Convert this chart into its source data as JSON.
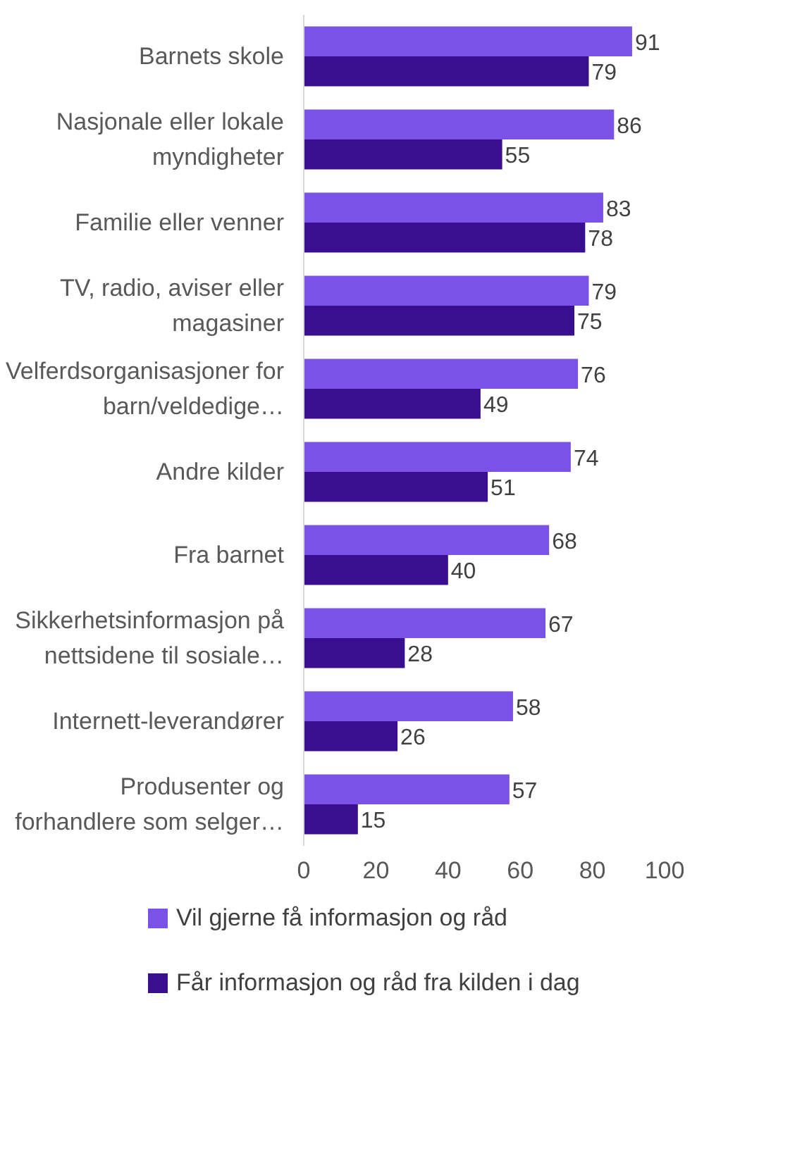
{
  "chart_data": {
    "type": "bar",
    "orientation": "horizontal",
    "categories": [
      "Barnets skole",
      "Nasjonale eller lokale\nmyndigheter",
      "Familie eller venner",
      "TV, radio, aviser eller\nmagasiner",
      "Velferdsorganisasjoner for\nbarn/veldedige…",
      "Andre kilder",
      "Fra barnet",
      "Sikkerhetsinformasjon på\nnettsidene til sosiale…",
      "Internett-leverandører",
      "Produsenter og\nforhandlere som selger…"
    ],
    "series": [
      {
        "name": "Vil gjerne få informasjon og råd",
        "color": "#7b52e8",
        "values": [
          91,
          86,
          83,
          79,
          76,
          74,
          68,
          67,
          58,
          57
        ]
      },
      {
        "name": "Får informasjon og råd fra kilden i dag",
        "color": "#3a0f8f",
        "values": [
          79,
          55,
          78,
          75,
          49,
          51,
          40,
          28,
          26,
          15
        ]
      }
    ],
    "xlim": [
      0,
      100
    ],
    "xticks": [
      0,
      20,
      40,
      60,
      80,
      100
    ],
    "data_labels": true,
    "grid": false,
    "legend": "bottom"
  }
}
